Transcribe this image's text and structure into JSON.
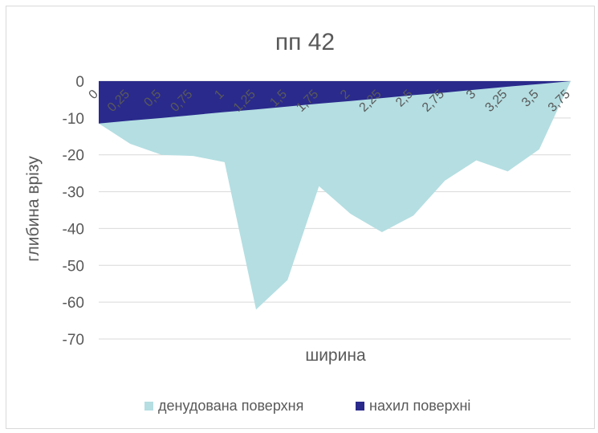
{
  "chart_data": {
    "type": "area",
    "title": "пп 42",
    "xlabel": "ширина",
    "ylabel": "глибина врізу",
    "categories": [
      "0",
      "0,25",
      "0,5",
      "0,75",
      "1",
      "1,25",
      "1,5",
      "1,75",
      "2",
      "2,25",
      "2,5",
      "2,75",
      "3",
      "3,25",
      "3,5",
      "3,75"
    ],
    "ylim": [
      -70,
      0
    ],
    "yticks": [
      "0",
      "-10",
      "-20",
      "-30",
      "-40",
      "-50",
      "-60",
      "-70"
    ],
    "grid": true,
    "legend": "bottom",
    "series": [
      {
        "name": "денудована поверхня",
        "color": "#b4dee2",
        "values": [
          -11.5,
          -17,
          -20,
          -20.3,
          -22,
          -62,
          -54,
          -28.5,
          -36,
          -41,
          -36.5,
          -27,
          -21.5,
          -24.5,
          -18.5,
          0
        ]
      },
      {
        "name": "нахил поверхні",
        "color": "#2a2a8c",
        "values": [
          -11.5,
          -10.7,
          -10,
          -9.2,
          -8.4,
          -7.7,
          -6.9,
          -6.1,
          -5.4,
          -4.6,
          -3.8,
          -3.1,
          -2.3,
          -1.5,
          -0.8,
          0
        ]
      }
    ]
  }
}
